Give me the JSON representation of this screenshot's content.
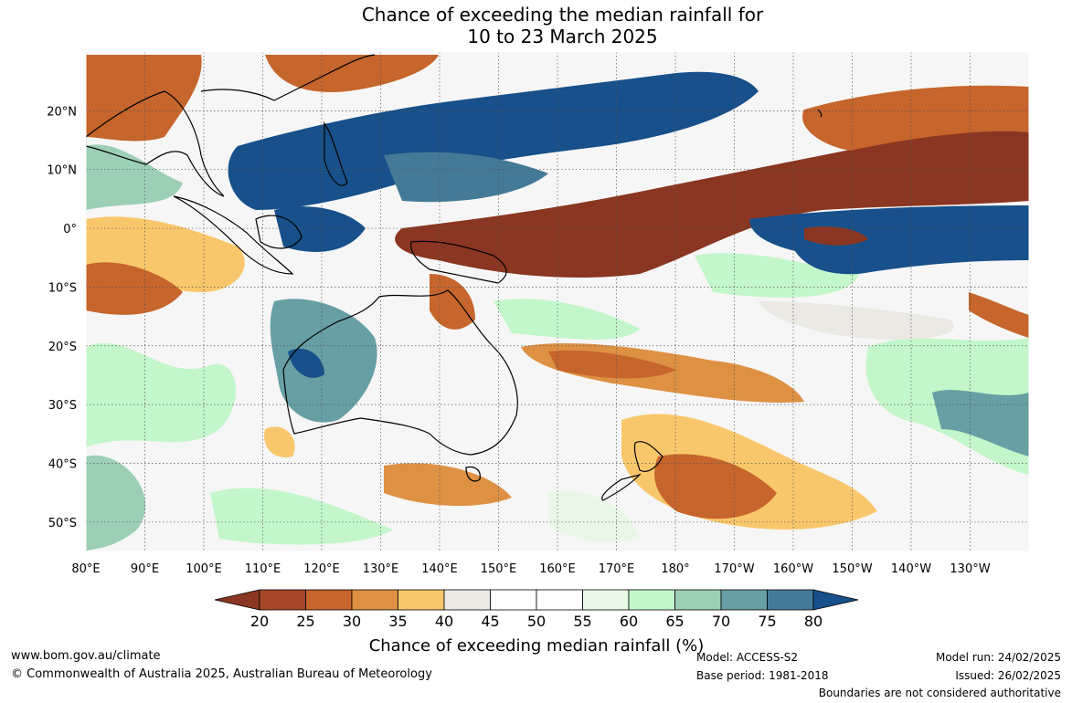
{
  "title": {
    "line1": "Chance of exceeding the median rainfall for",
    "line2": "10 to 23 March 2025"
  },
  "map": {
    "lat_ticks": [
      "20°N",
      "10°N",
      "0°",
      "10°S",
      "20°S",
      "30°S",
      "40°S",
      "50°S"
    ],
    "lon_ticks": [
      "80°E",
      "90°E",
      "100°E",
      "110°E",
      "120°E",
      "130°E",
      "140°E",
      "150°E",
      "160°E",
      "170°E",
      "180°",
      "170°W",
      "160°W",
      "150°W",
      "140°W",
      "130°W"
    ],
    "lon_range": [
      80,
      240
    ],
    "lat_range": [
      -55,
      30
    ]
  },
  "colorbar": {
    "ticks": [
      "20",
      "25",
      "30",
      "35",
      "40",
      "45",
      "50",
      "55",
      "60",
      "65",
      "70",
      "75",
      "80"
    ],
    "label": "Chance of exceeding median rainfall (%)",
    "colors": [
      "#a54729",
      "#c6652c",
      "#de9143",
      "#f9c76b",
      "#ebe9e4",
      "#ffffff",
      "#ffffff",
      "#e9f8e6",
      "#c4f6cb",
      "#9ccfb4",
      "#679fa4",
      "#457a96"
    ],
    "under_color": "#8a3622",
    "over_color": "#17508a"
  },
  "footer": {
    "website": "www.bom.gov.au/climate",
    "copyright": "© Commonwealth of Australia 2025, Australian Bureau of Meteorology",
    "model": "Model: ACCESS-S2",
    "base_period": "Base period: 1981-2018",
    "model_run": "Model run: 24/02/2025",
    "issued": "Issued: 26/02/2025",
    "disclaimer": "Boundaries are not considered authoritative"
  }
}
